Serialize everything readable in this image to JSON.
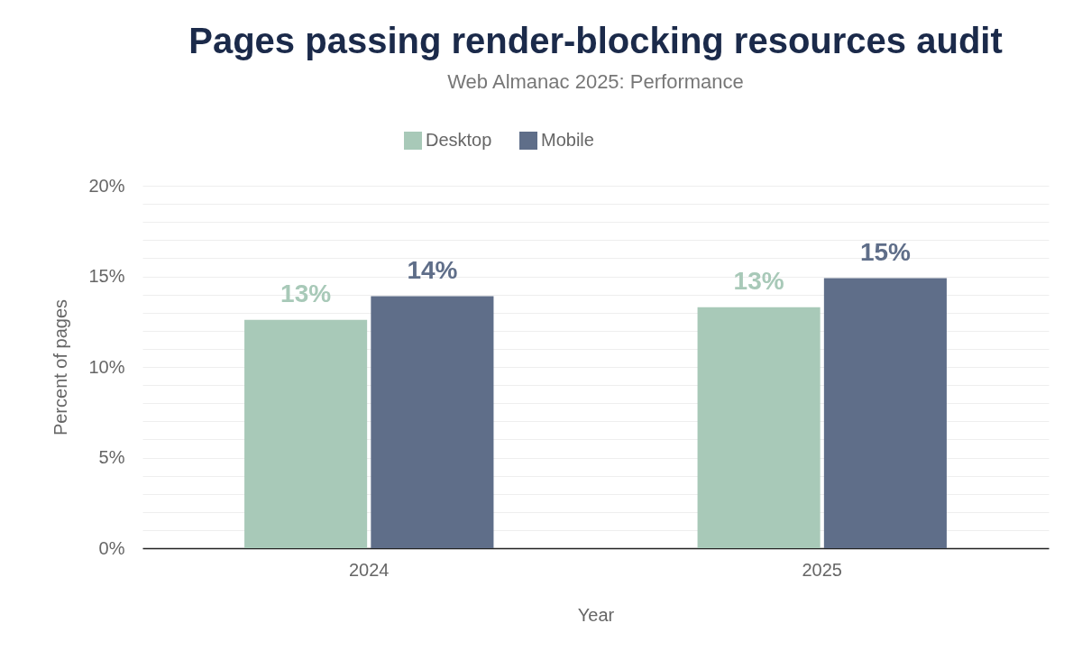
{
  "chart_data": {
    "type": "bar",
    "title": "Pages passing render-blocking resources audit",
    "subtitle": "Web Almanac 2025: Performance",
    "xlabel": "Year",
    "ylabel": "Percent of pages",
    "categories": [
      "2024",
      "2025"
    ],
    "series": [
      {
        "name": "Desktop",
        "color": "#a8c9b8",
        "values": [
          12.6,
          13.3
        ],
        "value_labels": [
          "13%",
          "13%"
        ]
      },
      {
        "name": "Mobile",
        "color": "#5f6e89",
        "values": [
          13.9,
          14.9
        ],
        "value_labels": [
          "14%",
          "15%"
        ]
      }
    ],
    "ylim": [
      0,
      20
    ],
    "yticks": [
      {
        "value": 0,
        "label": "0%"
      },
      {
        "value": 1,
        "label": null
      },
      {
        "value": 2,
        "label": null
      },
      {
        "value": 3,
        "label": null
      },
      {
        "value": 4,
        "label": null
      },
      {
        "value": 5,
        "label": "5%"
      },
      {
        "value": 6,
        "label": null
      },
      {
        "value": 7,
        "label": null
      },
      {
        "value": 8,
        "label": null
      },
      {
        "value": 9,
        "label": null
      },
      {
        "value": 10,
        "label": "10%"
      },
      {
        "value": 11,
        "label": null
      },
      {
        "value": 12,
        "label": null
      },
      {
        "value": 13,
        "label": null
      },
      {
        "value": 14,
        "label": null
      },
      {
        "value": 15,
        "label": "15%"
      },
      {
        "value": 16,
        "label": null
      },
      {
        "value": 17,
        "label": null
      },
      {
        "value": 18,
        "label": null
      },
      {
        "value": 19,
        "label": null
      },
      {
        "value": 20,
        "label": "20%"
      }
    ],
    "grid": "y",
    "legend": "top"
  }
}
